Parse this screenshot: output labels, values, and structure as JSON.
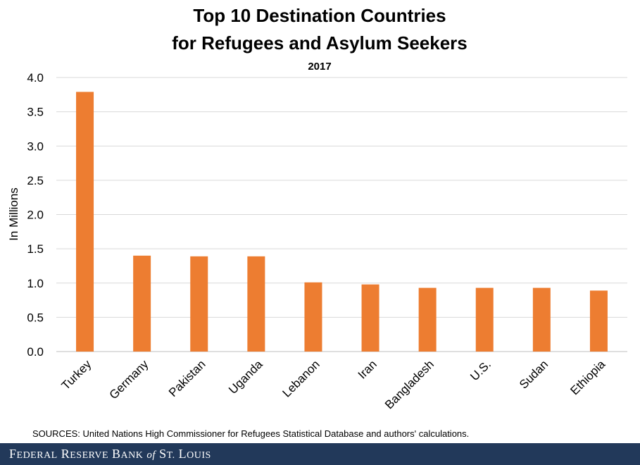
{
  "chart_data": {
    "type": "bar",
    "title": "Top 10 Destination Countries",
    "title_line2": "for Refugees and Asylum Seekers",
    "subtitle": "2017",
    "xlabel": "",
    "ylabel": "In Millions",
    "ylim": [
      0,
      4.0
    ],
    "yticks": [
      "0.0",
      "0.5",
      "1.0",
      "1.5",
      "2.0",
      "2.5",
      "3.0",
      "3.5",
      "4.0"
    ],
    "grid": true,
    "legend": "none",
    "bar_color": "#ED7D31",
    "categories": [
      "Turkey",
      "Germany",
      "Pakistan",
      "Uganda",
      "Lebanon",
      "Iran",
      "Bangladesh",
      "U.S.",
      "Sudan",
      "Ethiopia"
    ],
    "values": [
      3.79,
      1.4,
      1.39,
      1.39,
      1.01,
      0.98,
      0.93,
      0.93,
      0.93,
      0.89
    ]
  },
  "source_note": "SOURCES: United Nations High Commissioner for Refugees Statistical Database and authors' calculations.",
  "footer": {
    "org_F": "F",
    "org_ederal": "EDERAL",
    "org_R": "R",
    "org_eserve": "ESERVE",
    "org_B": "B",
    "org_ank": "ANK",
    "org_of": "of",
    "org_St": "S",
    "org_t": "T.",
    "org_L": "L",
    "org_ouis": "OUIS",
    "bg_color": "#22395a"
  }
}
